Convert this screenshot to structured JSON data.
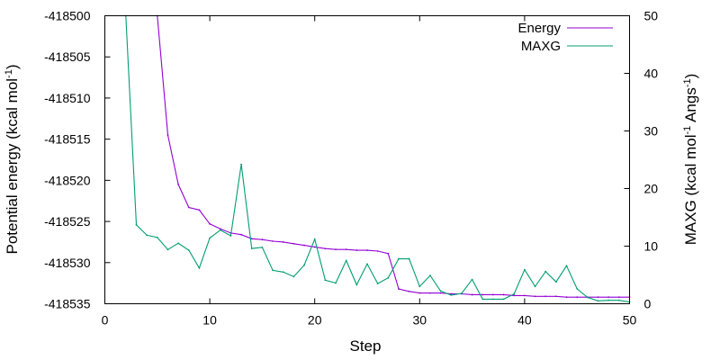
{
  "chart_data": {
    "type": "line",
    "xlabel": "Step",
    "ylabel_left": {
      "main": "Potential energy (kcal mol",
      "sup": "-1",
      "tail": ")"
    },
    "ylabel_right": {
      "main": "MAXG (kcal mol",
      "sup1": "-1",
      "mid": " Angs",
      "sup2": "-1",
      "tail": ")"
    },
    "xlim": [
      0,
      50
    ],
    "ylim_left": [
      -418535,
      -418500
    ],
    "ylim_right": [
      0,
      50
    ],
    "xticks": [
      0,
      10,
      20,
      30,
      40,
      50
    ],
    "xtick_labels": [
      "0",
      "10",
      "20",
      "30",
      "40",
      "50"
    ],
    "yticks_left": [
      -418500,
      -418505,
      -418510,
      -418515,
      -418520,
      -418525,
      -418530,
      -418535
    ],
    "ytick_labels_left": [
      "-418500",
      "-418505",
      "-418510",
      "-418515",
      "-418520",
      "-418525",
      "-418530",
      "-418535"
    ],
    "yticks_right": [
      0,
      10,
      20,
      30,
      40,
      50
    ],
    "ytick_labels_right": [
      "0",
      "10",
      "20",
      "30",
      "40",
      "50"
    ],
    "grid": false,
    "legend_position": "top-right",
    "series": [
      {
        "name": "Energy",
        "axis": "left",
        "color": "#9400d3",
        "x": [
          5,
          6,
          7,
          8,
          9,
          10,
          11,
          12,
          13,
          14,
          15,
          16,
          17,
          18,
          19,
          20,
          21,
          22,
          23,
          24,
          25,
          26,
          27,
          28,
          29,
          30,
          31,
          32,
          33,
          34,
          35,
          36,
          37,
          38,
          39,
          40,
          41,
          42,
          43,
          44,
          45,
          46,
          47,
          48,
          49,
          50
        ],
        "y": [
          -418500,
          -418514.5,
          -418520.5,
          -418523.3,
          -418523.6,
          -418525.3,
          -418525.9,
          -418526.4,
          -418526.6,
          -418527.1,
          -418527.2,
          -418527.4,
          -418527.5,
          -418527.7,
          -418527.9,
          -418528.1,
          -418528.3,
          -418528.4,
          -418528.4,
          -418528.5,
          -418528.5,
          -418528.6,
          -418528.9,
          -418533.2,
          -418533.5,
          -418533.7,
          -418533.7,
          -418533.7,
          -418533.8,
          -418533.8,
          -418533.9,
          -418533.9,
          -418533.9,
          -418533.9,
          -418534.0,
          -418534.0,
          -418534.1,
          -418534.1,
          -418534.1,
          -418534.2,
          -418534.2,
          -418534.2,
          -418534.2,
          -418534.2,
          -418534.2,
          -418534.2
        ]
      },
      {
        "name": "MAXG",
        "axis": "right",
        "color": "#009e73",
        "x": [
          2,
          3,
          4,
          5,
          6,
          7,
          8,
          9,
          10,
          11,
          12,
          13,
          14,
          15,
          16,
          17,
          18,
          19,
          20,
          21,
          22,
          23,
          24,
          25,
          26,
          27,
          28,
          29,
          30,
          31,
          32,
          33,
          34,
          35,
          36,
          37,
          38,
          39,
          40,
          41,
          42,
          43,
          44,
          45,
          46,
          47,
          48,
          49,
          50
        ],
        "y": [
          50,
          13.7,
          11.9,
          11.5,
          9.4,
          10.5,
          9.3,
          6.2,
          11.4,
          12.8,
          11.8,
          24.2,
          9.6,
          9.8,
          5.8,
          5.5,
          4.7,
          6.7,
          11.2,
          4.1,
          3.6,
          7.5,
          3.3,
          6.9,
          3.5,
          4.5,
          7.8,
          7.8,
          3.0,
          4.9,
          2.2,
          1.5,
          1.8,
          4.2,
          0.8,
          0.8,
          0.8,
          1.7,
          5.9,
          3.0,
          5.6,
          3.8,
          6.6,
          2.6,
          1.1,
          0.5,
          0.6,
          0.6,
          0.3
        ]
      }
    ]
  }
}
